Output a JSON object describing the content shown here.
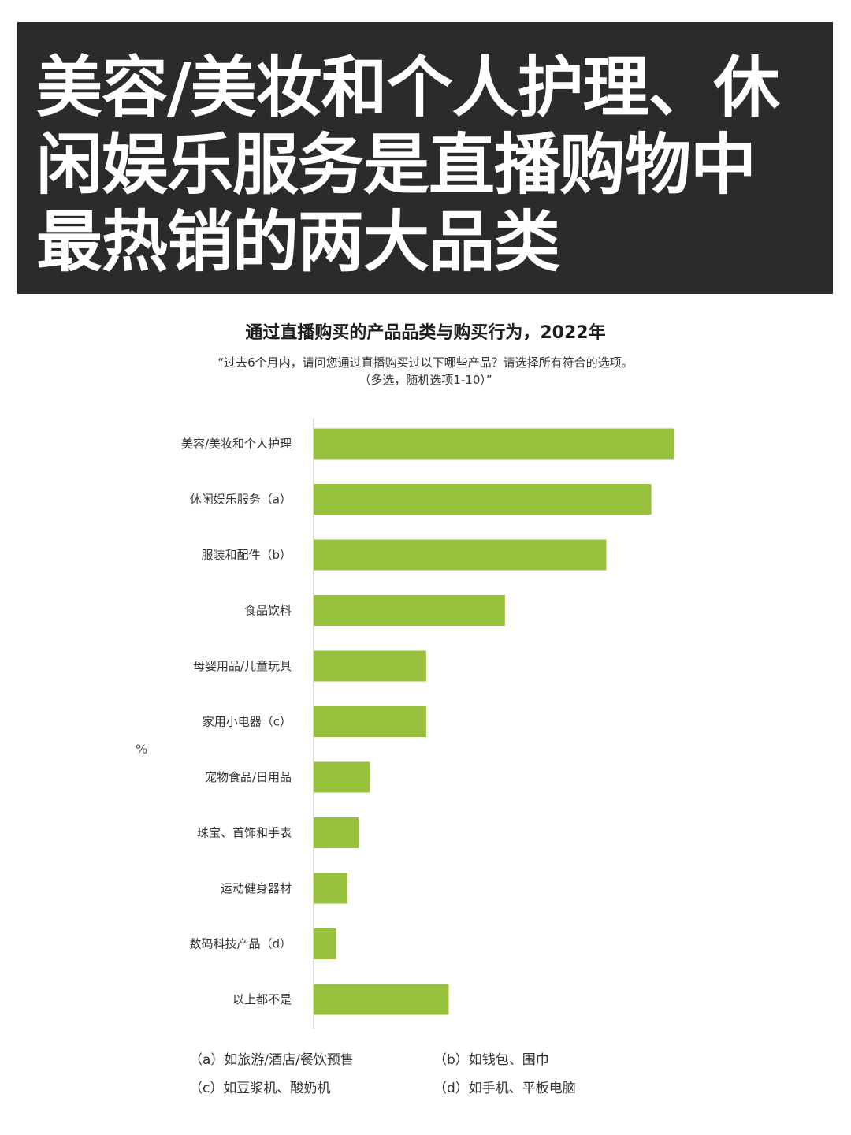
{
  "headline": "美容/美妆和个人护理、休闲娱乐服务是直播购物中最热销的两大品类",
  "chart_data": {
    "type": "bar",
    "orientation": "horizontal",
    "title": "通过直播购买的产品品类与购买行为，2022年",
    "subtitle_lines": [
      "“过去6个月内，请问您通过直播购买过以下哪些产品？请选择所有符合的选项。",
      "（多选，随机选项1-10）”"
    ],
    "unit": "%",
    "categories": [
      "美容/美妆和个人护理",
      "休闲娱乐服务（a）",
      "服装和配件（b）",
      "食品饮料",
      "母婴用品/儿童玩具",
      "家用小电器（c）",
      "宠物食品/日用品",
      "珠宝、首饰和手表",
      "运动健身器材",
      "数码科技产品（d）",
      "以上都不是"
    ],
    "values": [
      64,
      60,
      52,
      34,
      20,
      20,
      10,
      8,
      6,
      4,
      24
    ],
    "xlim": [
      0,
      70
    ],
    "bar_color": "#97c13c",
    "axis_color": "#cfcfcf",
    "grid": false,
    "notes": [
      "（a）如旅游/酒店/餐饮预售",
      "（b）如钱包、围巾",
      "（c）如豆浆机、酸奶机",
      "（d）如手机、平板电脑"
    ]
  }
}
